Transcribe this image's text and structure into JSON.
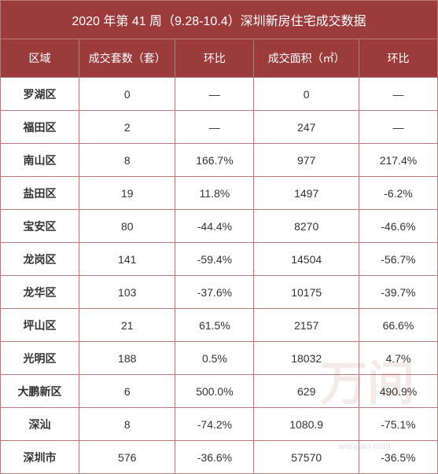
{
  "table": {
    "title": "2020 年第 41 周（9.28-10.4）深圳新房住宅成交数据",
    "columns": [
      "区域",
      "成交套数（套）",
      "环比",
      "成交面积（㎡）",
      "环比"
    ],
    "column_widths": [
      "18%",
      "22%",
      "18%",
      "24%",
      "18%"
    ],
    "rows": [
      [
        "罗湖区",
        "0",
        "—",
        "0",
        "—"
      ],
      [
        "福田区",
        "2",
        "—",
        "247",
        "—"
      ],
      [
        "南山区",
        "8",
        "166.7%",
        "977",
        "217.4%"
      ],
      [
        "盐田区",
        "19",
        "11.8%",
        "1497",
        "-6.2%"
      ],
      [
        "宝安区",
        "80",
        "-44.4%",
        "8270",
        "-46.6%"
      ],
      [
        "龙岗区",
        "141",
        "-59.4%",
        "14504",
        "-56.7%"
      ],
      [
        "龙华区",
        "103",
        "-37.6%",
        "10175",
        "-39.7%"
      ],
      [
        "坪山区",
        "21",
        "61.5%",
        "2157",
        "66.6%"
      ],
      [
        "光明区",
        "188",
        "0.5%",
        "18032",
        "4.7%"
      ],
      [
        "大鹏新区",
        "6",
        "500.0%",
        "629",
        "490.9%"
      ],
      [
        "深汕",
        "8",
        "-74.2%",
        "1080.9",
        "-75.1%"
      ],
      [
        "深圳市",
        "576",
        "-36.6%",
        "57570",
        "-36.5%"
      ]
    ]
  },
  "style": {
    "header_bg": "#9c3b3b",
    "header_text": "#ffffff",
    "border_color": "#b77a7a",
    "row_bg": "#ffffff",
    "text_color": "#333333",
    "title_fontsize": 16,
    "header_fontsize": 14,
    "body_fontsize": 14,
    "title_row_height": 49,
    "header_row_height": 49,
    "body_row_height": 42
  },
  "watermark": {
    "text": "万间",
    "url": "wanjian.com"
  }
}
